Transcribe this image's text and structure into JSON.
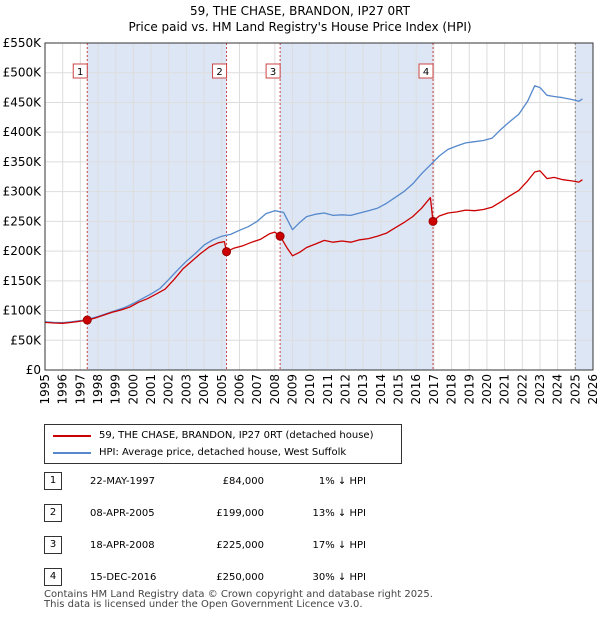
{
  "colors": {
    "property_line": "#cc0000",
    "hpi_line": "#5588cc",
    "shade": "#dde6f5",
    "vline": "#cc4444",
    "grid": "#dddddd"
  },
  "chart_data": {
    "type": "line",
    "title": "59, THE CHASE, BRANDON, IP27 0RT",
    "subtitle": "Price paid vs. HM Land Registry's House Price Index (HPI)",
    "xlim": [
      1995,
      2026
    ],
    "ylim": [
      0,
      550000
    ],
    "x_ticks": [
      1995,
      1996,
      1997,
      1998,
      1999,
      2000,
      2001,
      2002,
      2003,
      2004,
      2005,
      2006,
      2007,
      2008,
      2009,
      2010,
      2011,
      2012,
      2013,
      2014,
      2015,
      2016,
      2017,
      2018,
      2019,
      2020,
      2021,
      2022,
      2023,
      2024,
      2025,
      2026
    ],
    "y_ticks": [
      {
        "value": 0,
        "label": "£0"
      },
      {
        "value": 50000,
        "label": "£50K"
      },
      {
        "value": 100000,
        "label": "£100K"
      },
      {
        "value": 150000,
        "label": "£150K"
      },
      {
        "value": 200000,
        "label": "£200K"
      },
      {
        "value": 250000,
        "label": "£250K"
      },
      {
        "value": 300000,
        "label": "£300K"
      },
      {
        "value": 350000,
        "label": "£350K"
      },
      {
        "value": 400000,
        "label": "£400K"
      },
      {
        "value": 450000,
        "label": "£450K"
      },
      {
        "value": 500000,
        "label": "£500K"
      },
      {
        "value": 550000,
        "label": "£550K"
      }
    ],
    "shaded_ranges": [
      [
        1997.39,
        2005.27
      ],
      [
        2008.3,
        2016.95
      ],
      [
        2025.0,
        2026.0
      ]
    ],
    "series": [
      {
        "name": "59, THE CHASE, BRANDON, IP27 0RT (detached house)",
        "color": "#cc0000",
        "points": [
          [
            1995.0,
            80000
          ],
          [
            1995.5,
            79000
          ],
          [
            1996.0,
            78500
          ],
          [
            1996.5,
            80000
          ],
          [
            1997.0,
            82000
          ],
          [
            1997.39,
            84000
          ],
          [
            1997.8,
            87000
          ],
          [
            1998.3,
            92000
          ],
          [
            1998.8,
            97000
          ],
          [
            1999.3,
            101000
          ],
          [
            1999.8,
            106000
          ],
          [
            2000.3,
            114000
          ],
          [
            2000.8,
            120000
          ],
          [
            2001.3,
            128000
          ],
          [
            2001.8,
            136000
          ],
          [
            2002.3,
            152000
          ],
          [
            2002.8,
            170000
          ],
          [
            2003.3,
            183000
          ],
          [
            2003.8,
            196000
          ],
          [
            2004.3,
            207000
          ],
          [
            2004.8,
            214000
          ],
          [
            2005.15,
            216000
          ],
          [
            2005.27,
            199000
          ],
          [
            2005.7,
            205000
          ],
          [
            2006.2,
            209000
          ],
          [
            2006.7,
            215000
          ],
          [
            2007.2,
            220000
          ],
          [
            2007.7,
            229000
          ],
          [
            2008.0,
            232000
          ],
          [
            2008.3,
            225000
          ],
          [
            2008.7,
            205000
          ],
          [
            2009.0,
            192000
          ],
          [
            2009.4,
            198000
          ],
          [
            2009.8,
            206000
          ],
          [
            2010.3,
            212000
          ],
          [
            2010.8,
            218000
          ],
          [
            2011.3,
            215000
          ],
          [
            2011.8,
            217000
          ],
          [
            2012.3,
            215000
          ],
          [
            2012.8,
            219000
          ],
          [
            2013.3,
            221000
          ],
          [
            2013.8,
            225000
          ],
          [
            2014.3,
            230000
          ],
          [
            2014.8,
            239000
          ],
          [
            2015.3,
            248000
          ],
          [
            2015.8,
            258000
          ],
          [
            2016.3,
            272000
          ],
          [
            2016.8,
            290000
          ],
          [
            2016.95,
            250000
          ],
          [
            2017.3,
            259000
          ],
          [
            2017.8,
            264000
          ],
          [
            2018.3,
            266000
          ],
          [
            2018.8,
            269000
          ],
          [
            2019.3,
            268000
          ],
          [
            2019.8,
            270000
          ],
          [
            2020.3,
            274000
          ],
          [
            2020.8,
            283000
          ],
          [
            2021.3,
            293000
          ],
          [
            2021.8,
            302000
          ],
          [
            2022.3,
            318000
          ],
          [
            2022.7,
            333000
          ],
          [
            2023.0,
            335000
          ],
          [
            2023.4,
            322000
          ],
          [
            2023.8,
            324000
          ],
          [
            2024.3,
            320000
          ],
          [
            2024.8,
            318000
          ],
          [
            2025.2,
            316000
          ],
          [
            2025.4,
            320000
          ]
        ]
      },
      {
        "name": "HPI: Average price, detached house, West Suffolk",
        "color": "#5588cc",
        "points": [
          [
            1995.0,
            81000
          ],
          [
            1995.5,
            80000
          ],
          [
            1996.0,
            79500
          ],
          [
            1996.5,
            81000
          ],
          [
            1997.0,
            83000
          ],
          [
            1997.5,
            86000
          ],
          [
            1998.0,
            90000
          ],
          [
            1998.5,
            95000
          ],
          [
            1999.0,
            100000
          ],
          [
            1999.5,
            105000
          ],
          [
            2000.0,
            112000
          ],
          [
            2000.5,
            120000
          ],
          [
            2001.0,
            128000
          ],
          [
            2001.5,
            137000
          ],
          [
            2002.0,
            152000
          ],
          [
            2002.5,
            168000
          ],
          [
            2003.0,
            183000
          ],
          [
            2003.5,
            196000
          ],
          [
            2004.0,
            210000
          ],
          [
            2004.5,
            219000
          ],
          [
            2005.0,
            225000
          ],
          [
            2005.5,
            228000
          ],
          [
            2006.0,
            235000
          ],
          [
            2006.5,
            241000
          ],
          [
            2007.0,
            250000
          ],
          [
            2007.5,
            263000
          ],
          [
            2008.0,
            268000
          ],
          [
            2008.5,
            265000
          ],
          [
            2009.0,
            236000
          ],
          [
            2009.4,
            248000
          ],
          [
            2009.8,
            258000
          ],
          [
            2010.3,
            262000
          ],
          [
            2010.8,
            264000
          ],
          [
            2011.3,
            260000
          ],
          [
            2011.8,
            261000
          ],
          [
            2012.3,
            260000
          ],
          [
            2012.8,
            264000
          ],
          [
            2013.3,
            268000
          ],
          [
            2013.8,
            272000
          ],
          [
            2014.3,
            280000
          ],
          [
            2014.8,
            290000
          ],
          [
            2015.3,
            300000
          ],
          [
            2015.8,
            313000
          ],
          [
            2016.3,
            330000
          ],
          [
            2016.8,
            345000
          ],
          [
            2017.3,
            360000
          ],
          [
            2017.8,
            371000
          ],
          [
            2018.3,
            377000
          ],
          [
            2018.8,
            382000
          ],
          [
            2019.3,
            384000
          ],
          [
            2019.8,
            386000
          ],
          [
            2020.3,
            390000
          ],
          [
            2020.8,
            405000
          ],
          [
            2021.3,
            418000
          ],
          [
            2021.8,
            430000
          ],
          [
            2022.3,
            452000
          ],
          [
            2022.7,
            478000
          ],
          [
            2023.0,
            475000
          ],
          [
            2023.4,
            462000
          ],
          [
            2023.8,
            460000
          ],
          [
            2024.3,
            458000
          ],
          [
            2024.8,
            455000
          ],
          [
            2025.2,
            452000
          ],
          [
            2025.4,
            456000
          ]
        ]
      }
    ],
    "sales": [
      {
        "label": "1",
        "year": 1997.39,
        "price": 84000,
        "date": "22-MAY-1997",
        "price_text": "£84,000",
        "hpi_text": "1% ↓ HPI"
      },
      {
        "label": "2",
        "year": 2005.27,
        "price": 199000,
        "date": "08-APR-2005",
        "price_text": "£199,000",
        "hpi_text": "13% ↓ HPI"
      },
      {
        "label": "3",
        "year": 2008.3,
        "price": 225000,
        "date": "18-APR-2008",
        "price_text": "£225,000",
        "hpi_text": "17% ↓ HPI"
      },
      {
        "label": "4",
        "year": 2016.95,
        "price": 250000,
        "date": "15-DEC-2016",
        "price_text": "£250,000",
        "hpi_text": "30% ↓ HPI"
      }
    ]
  },
  "legend": {
    "property_label": "59, THE CHASE, BRANDON, IP27 0RT (detached house)",
    "hpi_label": "HPI: Average price, detached house, West Suffolk"
  },
  "footer": {
    "line1": "Contains HM Land Registry data © Crown copyright and database right 2025.",
    "line2": "This data is licensed under the Open Government Licence v3.0."
  }
}
